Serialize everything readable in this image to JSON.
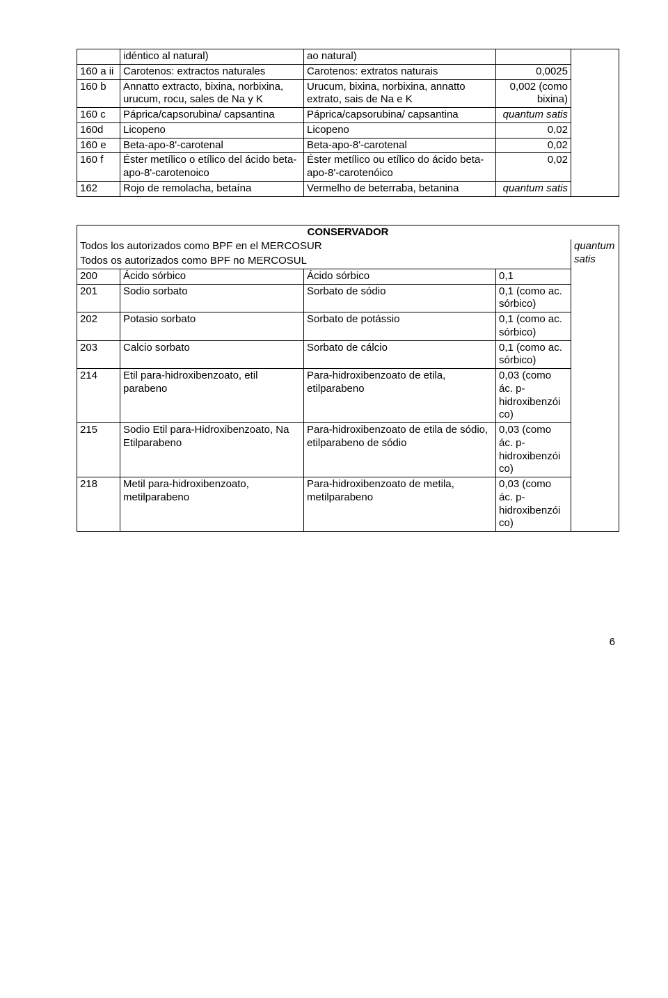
{
  "table1": {
    "r1": {
      "col2": "idéntico al natural)",
      "col3": "ao natural)"
    },
    "r2": {
      "col1": "160 a ii",
      "col2": "Carotenos: extractos naturales",
      "col3": "Carotenos: extratos naturais",
      "col4": "0,0025"
    },
    "r3": {
      "col1": "160 b",
      "col2": "Annatto extracto, bixina, norbixina, urucum, rocu, sales de Na y K",
      "col3": "Urucum, bixina, norbixina, annatto extrato, sais de Na e K",
      "col4": "0,002 (como bixina)"
    },
    "r4": {
      "col1": "160 c",
      "col2": "Páprica/capsorubina/ capsantina",
      "col3": "Páprica/capsorubina/ capsantina",
      "col4": "quantum satis"
    },
    "r5": {
      "col1": "160d",
      "col2": "Licopeno",
      "col3": "Licopeno",
      "col4": "0,02"
    },
    "r6": {
      "col1": "160 e",
      "col2": "Beta-apo-8'-carotenal",
      "col3": "Beta-apo-8'-carotenal",
      "col4": "0,02"
    },
    "r7": {
      "col1": "160 f",
      "col2": "Éster metílico o etílico del ácido beta-apo-8'-carotenoico",
      "col3": "Éster metílico ou etílico do ácido beta-apo-8'-carotenóico",
      "col4": "0,02"
    },
    "r8": {
      "col1": "162",
      "col2": "Rojo de remolacha, betaína",
      "col3": "Vermelho de beterraba, betanina",
      "col4": "quantum satis"
    }
  },
  "table2": {
    "title": "CONSERVADOR",
    "hdr1": "Todos los autorizados como BPF en el MERCOSUR",
    "hdr2": "Todos os autorizados como BPF no MERCOSUL",
    "hdrval": "quantum satis",
    "r1": {
      "col1": "200",
      "col2": "Ácido sórbico",
      "col3": "Ácido sórbico",
      "col4": "0,1"
    },
    "r2": {
      "col1": "201",
      "col2": "Sodio sorbato",
      "col3": "Sorbato de sódio",
      "col4": "0,1 (como ac. sórbico)"
    },
    "r3": {
      "col1": "202",
      "col2": "Potasio sorbato",
      "col3": "Sorbato de potássio",
      "col4": "0,1 (como ac. sórbico)"
    },
    "r4": {
      "col1": "203",
      "col2": "Calcio sorbato",
      "col3": "Sorbato de cálcio",
      "col4": "0,1 (como ac. sórbico)"
    },
    "r5": {
      "col1": "214",
      "col2": "Etil para-hidroxibenzoato, etil parabeno",
      "col3": "Para-hidroxibenzoato de etila, etilparabeno",
      "col4": "0,03 (como ác. p-hidroxibenzói co)"
    },
    "r6": {
      "col1": "215",
      "col2": "Sodio Etil para-Hidroxibenzoato, Na Etilparabeno",
      "col3": "Para-hidroxibenzoato de etila de sódio, etilparabeno de sódio",
      "col4": "0,03 (como ác. p-hidroxibenzói co)"
    },
    "r7": {
      "col1": "218",
      "col2": "Metil para-hidroxibenzoato, metilparabeno",
      "col3": "Para-hidroxibenzoato de metila, metilparabeno",
      "col4": "0,03 (como ác. p-hidroxibenzói co)"
    }
  },
  "page_number": "6"
}
